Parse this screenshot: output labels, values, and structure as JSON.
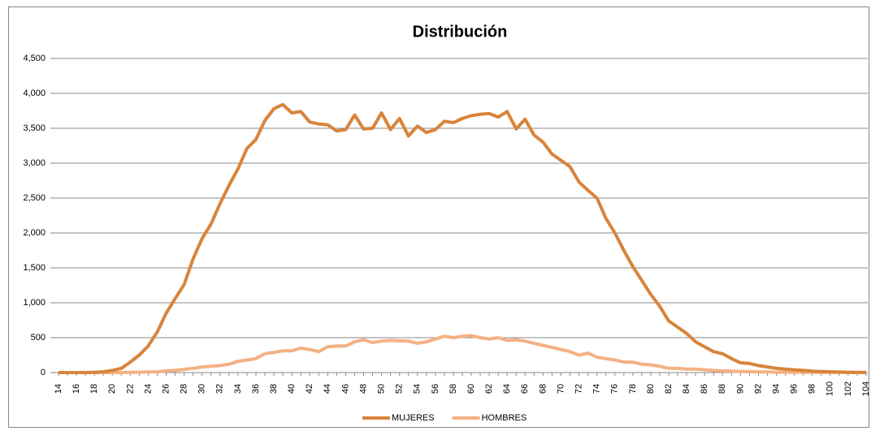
{
  "chart_data": {
    "type": "line",
    "title": "Distribución",
    "categories": [
      14,
      null,
      16,
      null,
      18,
      null,
      20,
      null,
      22,
      null,
      24,
      null,
      26,
      null,
      28,
      null,
      30,
      null,
      32,
      null,
      34,
      null,
      36,
      null,
      38,
      null,
      40,
      null,
      42,
      null,
      44,
      null,
      46,
      null,
      48,
      null,
      50,
      null,
      52,
      null,
      54,
      null,
      56,
      null,
      58,
      null,
      60,
      null,
      62,
      null,
      64,
      null,
      66,
      null,
      68,
      null,
      70,
      null,
      72,
      null,
      74,
      null,
      76,
      null,
      78,
      null,
      80,
      null,
      82,
      null,
      84,
      null,
      86,
      null,
      88,
      null,
      90,
      null,
      92,
      null,
      94,
      null,
      96,
      null,
      98,
      null,
      100,
      null,
      102,
      null,
      104
    ],
    "series": [
      {
        "name": "MUJERES",
        "color": "#d9843b",
        "values": [
          0,
          0,
          0,
          0,
          5,
          10,
          30,
          60,
          150,
          250,
          380,
          580,
          850,
          1060,
          1260,
          1630,
          1920,
          2130,
          2420,
          2680,
          2920,
          3210,
          3340,
          3610,
          3780,
          3840,
          3720,
          3740,
          3590,
          3560,
          3550,
          3460,
          3480,
          3690,
          3490,
          3500,
          3720,
          3480,
          3640,
          3390,
          3530,
          3440,
          3480,
          3600,
          3580,
          3640,
          3680,
          3700,
          3710,
          3660,
          3740,
          3490,
          3630,
          3400,
          3300,
          3130,
          3040,
          2950,
          2730,
          2610,
          2500,
          2210,
          2000,
          1750,
          1520,
          1320,
          1120,
          950,
          740,
          650,
          560,
          440,
          370,
          300,
          270,
          200,
          140,
          130,
          100,
          80,
          60,
          50,
          40,
          30,
          20,
          15,
          10,
          8,
          5,
          3,
          2
        ]
      },
      {
        "name": "HOMBRES",
        "color": "#f4b183",
        "values": [
          0,
          0,
          0,
          0,
          0,
          0,
          0,
          0,
          5,
          5,
          10,
          10,
          25,
          30,
          45,
          60,
          80,
          90,
          100,
          120,
          160,
          180,
          200,
          270,
          290,
          310,
          310,
          350,
          330,
          300,
          370,
          380,
          380,
          440,
          470,
          430,
          450,
          460,
          455,
          450,
          420,
          440,
          480,
          520,
          500,
          520,
          530,
          500,
          480,
          500,
          460,
          470,
          450,
          420,
          390,
          360,
          330,
          300,
          250,
          280,
          220,
          200,
          180,
          150,
          150,
          120,
          110,
          90,
          60,
          60,
          50,
          50,
          40,
          30,
          25,
          20,
          15,
          12,
          10,
          8,
          6,
          5,
          4,
          3,
          2,
          2,
          1,
          1,
          1,
          0,
          0
        ]
      }
    ],
    "ylim": [
      0,
      4500
    ],
    "yticks": [
      0,
      500,
      {
        "value": 1000,
        "label": "1,000"
      },
      {
        "value": 1500,
        "label": "1,500"
      },
      {
        "value": 2000,
        "label": "2,000"
      },
      {
        "value": 2500,
        "label": "2,500"
      },
      {
        "value": 3000,
        "label": "3,000"
      },
      {
        "value": 3500,
        "label": "3,500"
      },
      {
        "value": 4000,
        "label": "4,000"
      },
      {
        "value": 4500,
        "label": "4,500"
      }
    ],
    "grid": true,
    "legend": "bottom"
  }
}
